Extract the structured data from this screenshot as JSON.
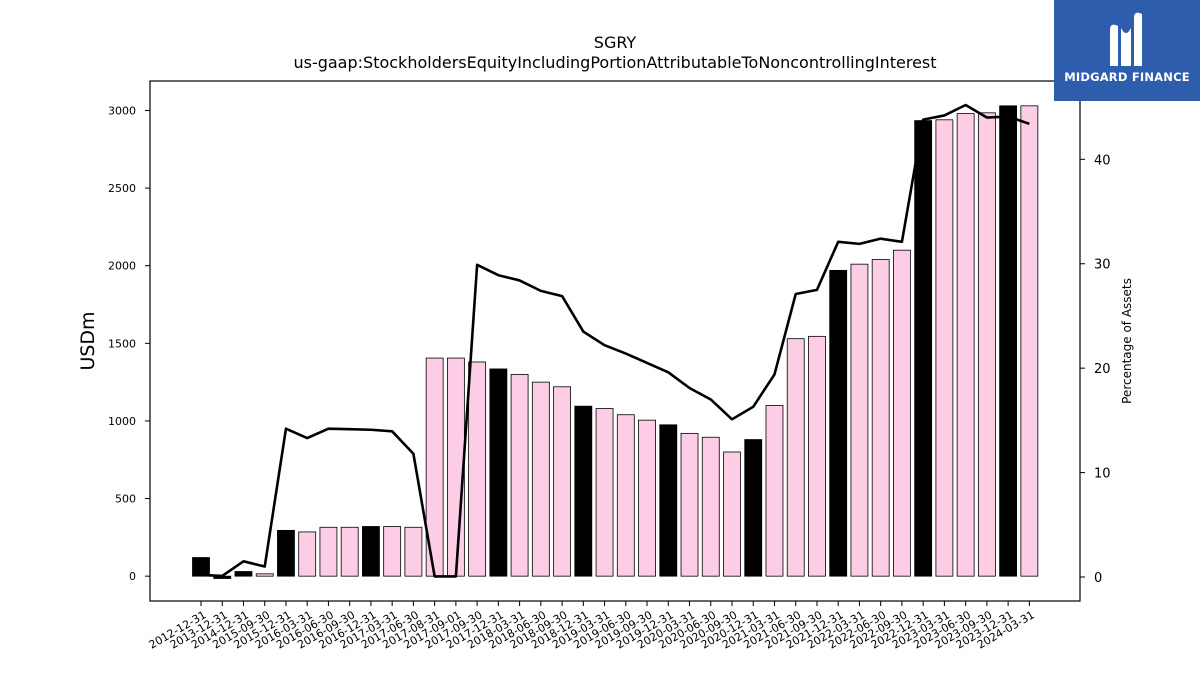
{
  "chart_data": {
    "type": "bar",
    "title": "SGRY",
    "subtitle": "us-gaap:StockholdersEquityIncludingPortionAttributableToNoncontrollingInterest",
    "ylabel": "USDm",
    "ylabel_right": "Percentage of Assets",
    "ylim": [
      -160,
      3190
    ],
    "ylim_right": [
      -2.3,
      47.5
    ],
    "yticks": [
      0,
      500,
      1000,
      1500,
      2000,
      2500,
      3000
    ],
    "yticks_right": [
      0,
      10,
      20,
      30,
      40
    ],
    "grid": false,
    "categories": [
      "2012-12-31",
      "2013-12-31",
      "2014-12-31",
      "2015-09-30",
      "2015-12-31",
      "2016-03-31",
      "2016-06-30",
      "2016-09-30",
      "2016-12-31",
      "2017-03-31",
      "2017-06-30",
      "2017-08-31",
      "2017-09-01",
      "2017-09-30",
      "2017-12-31",
      "2018-03-31",
      "2018-06-30",
      "2018-09-30",
      "2018-12-31",
      "2019-03-31",
      "2019-06-30",
      "2019-09-30",
      "2019-12-31",
      "2020-03-31",
      "2020-06-30",
      "2020-09-30",
      "2020-12-31",
      "2021-03-31",
      "2021-06-30",
      "2021-09-30",
      "2021-12-31",
      "2022-03-31",
      "2022-06-30",
      "2022-09-30",
      "2022-12-31",
      "2023-03-31",
      "2023-06-30",
      "2023-09-30",
      "2023-12-31",
      "2024-03-31"
    ],
    "series": [
      {
        "type": "bar",
        "values": [
          120,
          -15,
          30,
          15,
          295,
          285,
          315,
          315,
          320,
          320,
          315,
          1405,
          1405,
          1380,
          1335,
          1300,
          1250,
          1220,
          1095,
          1080,
          1040,
          1005,
          975,
          920,
          895,
          800,
          880,
          1100,
          1530,
          1545,
          1970,
          2010,
          2040,
          2100,
          2935,
          2940,
          2980,
          2985,
          3030,
          3030
        ],
        "annual": [
          true,
          true,
          true,
          false,
          true,
          false,
          false,
          false,
          true,
          false,
          false,
          false,
          false,
          false,
          true,
          false,
          false,
          false,
          true,
          false,
          false,
          false,
          true,
          false,
          false,
          false,
          true,
          false,
          false,
          false,
          true,
          false,
          false,
          false,
          true,
          false,
          false,
          false,
          true,
          false
        ],
        "color_annual": "#000000",
        "color_quarterly": "#fccde5"
      },
      {
        "type": "line",
        "axis": "right",
        "color": "#000000",
        "values": [
          0.2,
          0.1,
          1.5,
          1.0,
          14.2,
          13.3,
          14.2,
          14.15,
          14.1,
          13.95,
          11.8,
          0.05,
          0.05,
          29.9,
          28.9,
          28.4,
          27.4,
          26.9,
          23.5,
          22.2,
          21.4,
          20.5,
          19.6,
          18.1,
          17.0,
          15.1,
          16.3,
          19.4,
          27.1,
          27.5,
          32.1,
          31.9,
          32.4,
          32.1,
          43.8,
          44.2,
          45.2,
          44.0,
          44.1,
          43.4
        ]
      }
    ]
  },
  "logo": {
    "text": "MIDGARD FINANCE",
    "color": "#2f5dae"
  }
}
